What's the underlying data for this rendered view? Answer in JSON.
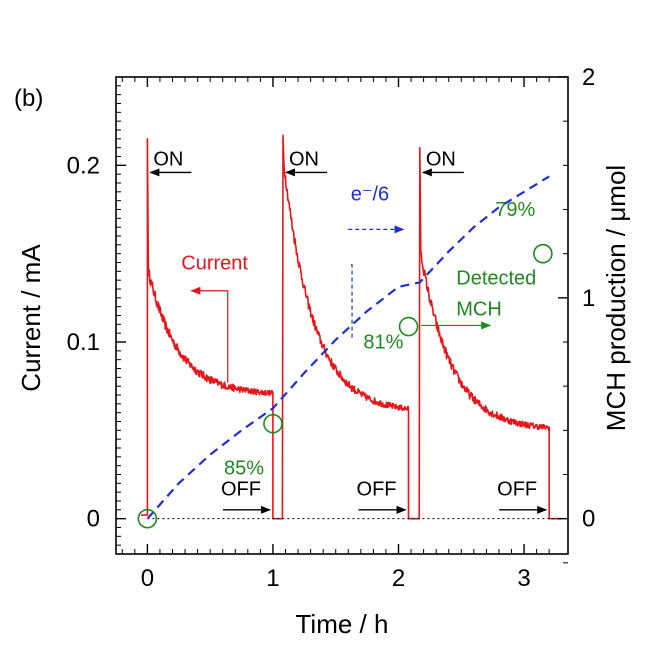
{
  "panel_label": "(b)",
  "colors": {
    "current": "#e8151a",
    "electron": "#1f2fd6",
    "mch": "#1e8a1e",
    "axis": "#000000",
    "baseline": "#000000"
  },
  "chart_data": {
    "type": "line",
    "xlabel": "Time / h",
    "ylabel_left": "Current / mA",
    "ylabel_right": "MCH production / μmol",
    "xlim": [
      -0.25,
      3.35
    ],
    "ylim_left": [
      -0.02,
      0.25
    ],
    "ylim_right": [
      -0.16,
      2.0
    ],
    "x_ticks": [
      {
        "value": 0,
        "label": "0"
      },
      {
        "value": 1,
        "label": "1"
      },
      {
        "value": 2,
        "label": "2"
      },
      {
        "value": 3,
        "label": "3"
      }
    ],
    "y_left_ticks": [
      {
        "value": 0,
        "label": "0"
      },
      {
        "value": 0.1,
        "label": "0.1"
      },
      {
        "value": 0.2,
        "label": "0.2"
      }
    ],
    "y_right_ticks": [
      {
        "value": 0,
        "label": "0"
      },
      {
        "value": 1,
        "label": "1"
      },
      {
        "value": 2,
        "label": "2"
      }
    ],
    "grid": false,
    "series": [
      {
        "name": "Current",
        "axis": "left",
        "style": "solid",
        "cycles": [
          {
            "on": 0.0,
            "off": 1.0,
            "spike": 0.215,
            "start": 0.14,
            "end": 0.07
          },
          {
            "on": 1.08,
            "off": 2.08,
            "spike": 0.217,
            "start": 0.2,
            "end": 0.06
          },
          {
            "on": 2.17,
            "off": 3.2,
            "spike": 0.21,
            "start": 0.15,
            "end": 0.05
          }
        ]
      },
      {
        "name": "e⁻/6",
        "axis": "right",
        "style": "dashed",
        "x": [
          0,
          0.25,
          0.5,
          0.75,
          1.0,
          1.25,
          1.5,
          1.75,
          2.0,
          2.17,
          2.4,
          2.6,
          2.8,
          3.0,
          3.2
        ],
        "y": [
          0,
          0.16,
          0.29,
          0.4,
          0.5,
          0.66,
          0.81,
          0.94,
          1.05,
          1.07,
          1.21,
          1.32,
          1.41,
          1.48,
          1.55
        ]
      },
      {
        "name": "Detected MCH",
        "axis": "right",
        "style": "markers",
        "x": [
          0.0,
          1.0,
          2.08,
          3.15
        ],
        "y": [
          0.0,
          0.43,
          0.87,
          1.2
        ]
      }
    ],
    "annotations": {
      "on": [
        {
          "label": "ON",
          "x": 0.0
        },
        {
          "label": "ON",
          "x": 1.08
        },
        {
          "label": "ON",
          "x": 2.17
        }
      ],
      "off": [
        {
          "label": "OFF",
          "x": 1.0
        },
        {
          "label": "OFF",
          "x": 2.08
        },
        {
          "label": "OFF",
          "x": 3.2
        }
      ],
      "efficiency": [
        {
          "label": "85%",
          "x": 0.77,
          "y": 0.2
        },
        {
          "label": "81%",
          "x": 1.88,
          "y": 0.77
        },
        {
          "label": "79%",
          "x": 2.93,
          "y": 1.37
        }
      ],
      "current_label": "Current",
      "electron_label": "e⁻/6",
      "mch_label_line1": "Detected",
      "mch_label_line2": "MCH"
    }
  }
}
